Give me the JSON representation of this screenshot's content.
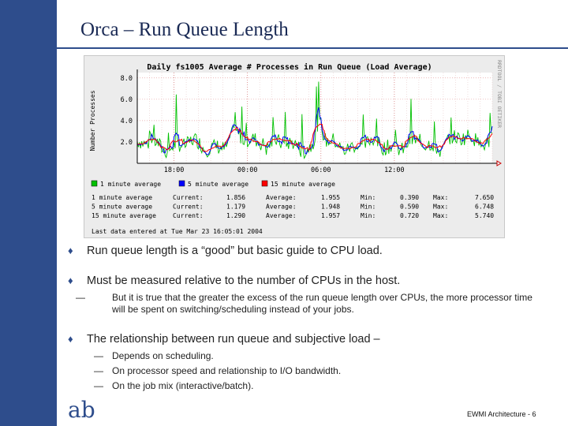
{
  "slide": {
    "title": "Orca – Run Queue Length",
    "footer": "EWMI Architecture - 6",
    "logo_text": "ab",
    "accent_color": "#2e4d8c"
  },
  "bullets": [
    {
      "text": "Run queue length is a “good” but basic guide to CPU load.",
      "subs": []
    },
    {
      "text": "Must be measured relative to the number of CPUs in the host.",
      "subs": [
        "But it is true that the greater the excess of the run queue length over CPUs, the more processor time will be spent on switching/scheduling instead of your jobs."
      ]
    },
    {
      "text": "The relationship between run queue and subjective load –",
      "subs": [
        "Depends on scheduling.",
        "On processor speed and relationship to I/O bandwidth.",
        "On the job mix (interactive/batch)."
      ]
    }
  ],
  "chart_data": {
    "type": "line",
    "title": "Daily fs1005 Average # Processes in Run Queue (Load Average)",
    "ylabel": "Number Processes",
    "side_label": "RRDTOOL / TOBI OETIKER",
    "ylim": [
      0,
      8.5
    ],
    "yticks": [
      "8.0",
      "6.0",
      "4.0",
      "2.0"
    ],
    "ytick_values": [
      8,
      6,
      4,
      2
    ],
    "xlim": [
      15,
      44
    ],
    "xticks": [
      "18:00",
      "00:00",
      "06:00",
      "12:00"
    ],
    "xtick_values": [
      18,
      24,
      30,
      36
    ],
    "grid": true,
    "legend_position": "bottom",
    "series": [
      {
        "name": "1 minute average",
        "color": "#00c000",
        "current": "1.856",
        "average": "1.955",
        "min": "0.390",
        "max": "7.650"
      },
      {
        "name": "5 minute average",
        "color": "#0000ff",
        "current": "1.179",
        "average": "1.948",
        "min": "0.590",
        "max": "6.748"
      },
      {
        "name": "15 minute average",
        "color": "#ff0000",
        "current": "1.290",
        "average": "1.957",
        "min": "0.720",
        "max": "5.740"
      }
    ],
    "stats_labels": {
      "current": "Current:",
      "average": "Average:",
      "min": "Min:",
      "max": "Max:"
    },
    "last_entry": "Last data entered at Tue Mar 23 16:05:01 2004"
  }
}
